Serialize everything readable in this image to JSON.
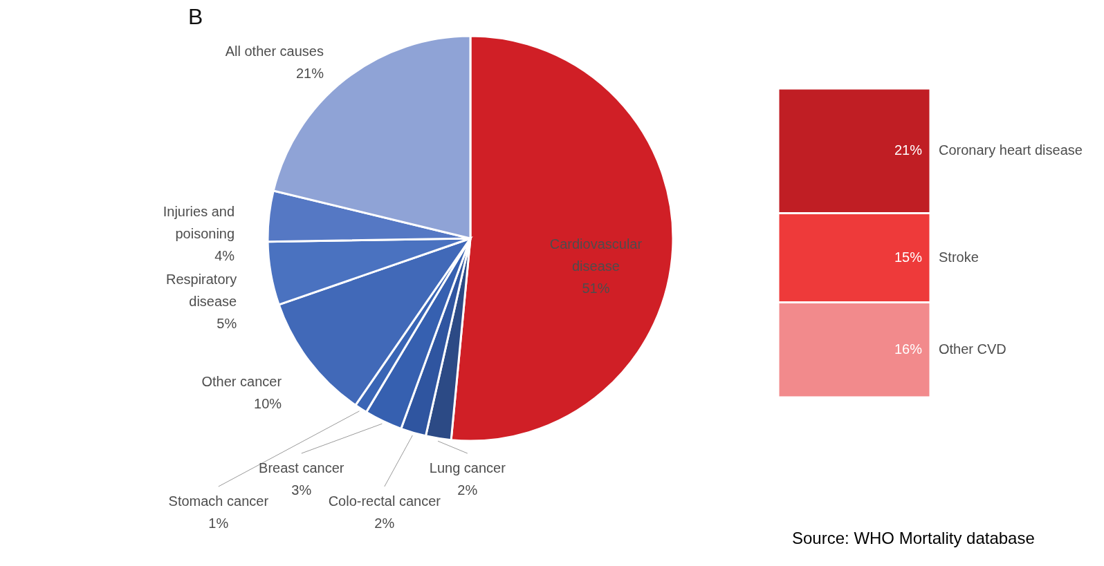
{
  "chart_data": [
    {
      "type": "pie",
      "title": "B",
      "categories": [
        "Cardiovascular disease",
        "Lung cancer",
        "Colo-rectal cancer",
        "Breast cancer",
        "Stomach cancer",
        "Other cancer",
        "Respiratory disease",
        "Injuries and poisoning",
        "All other causes"
      ],
      "values": [
        51,
        2,
        2,
        3,
        1,
        10,
        5,
        4,
        21
      ],
      "colors": [
        "#d01f26",
        "#2c4a85",
        "#2f55a0",
        "#3660b0",
        "#3a65b5",
        "#4169b8",
        "#4a72c0",
        "#5578c4",
        "#8fa3d6"
      ],
      "value_labels": [
        "51%",
        "2%",
        "2%",
        "3%",
        "1%",
        "10%",
        "5%",
        "4%",
        "21%"
      ]
    },
    {
      "type": "bar",
      "stacked": true,
      "categories": [
        null
      ],
      "series": [
        {
          "name": "Other CVD",
          "color": "#f28a8c",
          "values": [
            16
          ],
          "value_labels": [
            "16%"
          ]
        },
        {
          "name": "Stroke",
          "color": "#ee3a3a",
          "values": [
            15
          ],
          "value_labels": [
            "15%"
          ]
        },
        {
          "name": "Coronary heart disease",
          "color": "#c01e24",
          "values": [
            21
          ],
          "value_labels": [
            "21%"
          ]
        }
      ],
      "annotations": [
        "Source: WHO Mortality database"
      ]
    }
  ]
}
